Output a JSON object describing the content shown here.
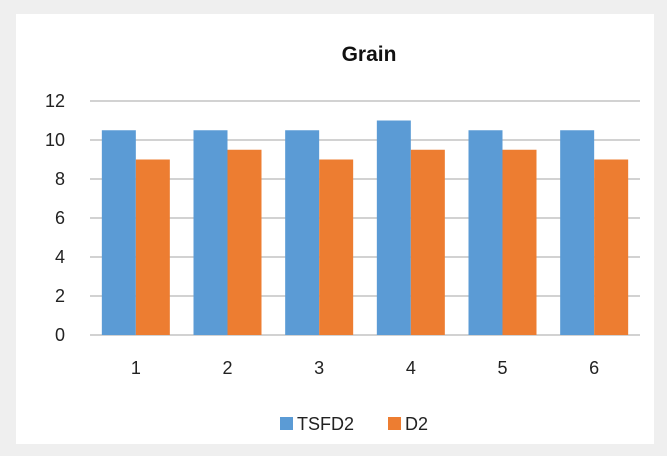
{
  "chart_data": {
    "type": "bar",
    "title": "Grain",
    "xlabel": "",
    "ylabel": "",
    "categories": [
      "1",
      "2",
      "3",
      "4",
      "5",
      "6"
    ],
    "series": [
      {
        "name": "TSFD2",
        "color": "#5b9bd5",
        "values": [
          10.5,
          10.5,
          10.5,
          11,
          10.5,
          10.5
        ]
      },
      {
        "name": "D2",
        "color": "#ed7d31",
        "values": [
          9,
          9.5,
          9,
          9.5,
          9.5,
          9
        ]
      }
    ],
    "ylim": [
      0,
      12
    ],
    "yticks": [
      "0",
      "2",
      "4",
      "6",
      "8",
      "10",
      "12"
    ],
    "grid": true,
    "legend_position": "bottom"
  }
}
